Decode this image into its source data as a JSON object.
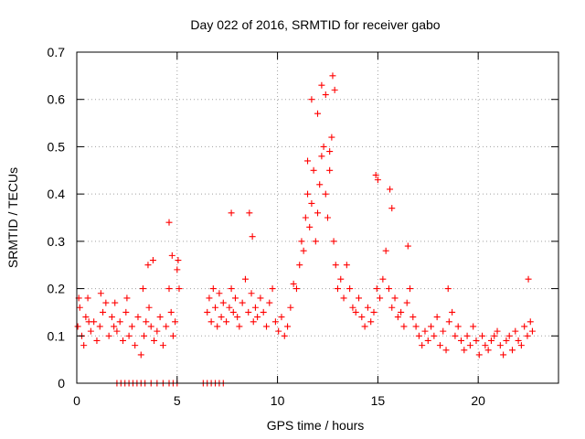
{
  "chart_data": {
    "type": "scatter",
    "title": "Day 022 of 2016, SRMTID for receiver gabo",
    "xlabel": "GPS time / hours",
    "ylabel": "SRMTID / TECUs",
    "xlim": [
      0,
      24
    ],
    "ylim": [
      0,
      0.7
    ],
    "xticks": [
      0,
      5,
      10,
      15,
      20
    ],
    "xtick_labels": [
      "0",
      "5",
      "10",
      "15",
      "20"
    ],
    "yticks": [
      0,
      0.1,
      0.2,
      0.3,
      0.4,
      0.5,
      0.6,
      0.7
    ],
    "ytick_labels": [
      "0",
      "0.1",
      "0.2",
      "0.3",
      "0.4",
      "0.5",
      "0.6",
      "0.7"
    ],
    "grid": true,
    "marker": "plus",
    "color": "#ff0000",
    "series": [
      {
        "name": "SRMTID",
        "x": [
          0.05,
          0.15,
          0.25,
          0.35,
          0.45,
          0.55,
          0.7,
          0.85,
          1.0,
          1.15,
          1.3,
          1.45,
          1.6,
          1.75,
          1.85,
          2.0,
          2.15,
          2.3,
          2.45,
          2.6,
          2.75,
          2.9,
          3.05,
          3.2,
          3.35,
          3.45,
          3.55,
          3.7,
          3.85,
          4.0,
          4.15,
          4.3,
          4.45,
          4.6,
          4.7,
          4.8,
          4.9,
          5.0,
          5.1,
          6.5,
          6.6,
          6.7,
          6.8,
          6.9,
          7.0,
          7.1,
          7.2,
          7.3,
          7.45,
          7.6,
          7.7,
          7.8,
          7.9,
          8.0,
          8.1,
          8.25,
          8.4,
          8.55,
          8.7,
          8.8,
          8.9,
          9.0,
          9.15,
          9.3,
          9.45,
          9.6,
          9.75,
          9.9,
          10.05,
          10.2,
          10.35,
          10.5,
          10.65,
          10.8,
          10.95,
          11.1,
          11.2,
          11.3,
          11.4,
          11.5,
          11.6,
          11.7,
          11.8,
          11.9,
          12.0,
          12.1,
          12.2,
          12.3,
          12.4,
          12.5,
          12.6,
          12.7,
          12.8,
          12.9,
          13.0,
          13.15,
          13.3,
          13.45,
          13.6,
          13.75,
          13.9,
          14.05,
          14.2,
          14.35,
          14.5,
          14.65,
          14.8,
          14.95,
          15.1,
          15.25,
          15.4,
          15.55,
          15.7,
          15.85,
          16.0,
          16.15,
          16.3,
          16.45,
          16.6,
          16.75,
          16.9,
          17.05,
          17.2,
          17.35,
          17.5,
          17.65,
          17.8,
          17.95,
          18.1,
          18.25,
          18.4,
          18.55,
          18.7,
          18.85,
          19.0,
          19.15,
          19.3,
          19.45,
          19.6,
          19.75,
          19.9,
          20.05,
          20.2,
          20.35,
          20.5,
          20.65,
          20.8,
          20.95,
          21.1,
          21.25,
          21.4,
          21.55,
          21.7,
          21.85,
          22.0,
          22.15,
          22.3,
          22.45,
          22.6,
          22.7,
          2.0,
          2.2,
          2.4,
          2.6,
          2.8,
          3.0,
          3.2,
          3.4,
          3.7,
          4.0,
          4.3,
          4.6,
          4.8,
          5.0,
          6.3,
          6.5,
          6.7,
          6.9,
          7.1,
          7.3,
          0.1,
          0.6,
          1.2,
          1.9,
          2.5,
          3.3,
          3.6,
          3.8,
          4.6,
          4.75,
          5.05,
          7.7,
          8.6,
          8.75,
          11.5,
          11.7,
          12.0,
          12.2,
          12.4,
          12.6,
          12.75,
          12.85,
          14.9,
          15.0,
          15.6,
          15.7,
          16.5,
          18.5,
          22.5
        ],
        "y": [
          0.12,
          0.16,
          0.1,
          0.08,
          0.14,
          0.18,
          0.11,
          0.13,
          0.09,
          0.12,
          0.15,
          0.17,
          0.1,
          0.14,
          0.12,
          0.11,
          0.13,
          0.09,
          0.15,
          0.1,
          0.12,
          0.08,
          0.14,
          0.06,
          0.1,
          0.13,
          0.25,
          0.12,
          0.09,
          0.11,
          0.14,
          0.08,
          0.12,
          0.2,
          0.15,
          0.1,
          0.13,
          0.24,
          0.2,
          0.15,
          0.18,
          0.13,
          0.2,
          0.16,
          0.12,
          0.19,
          0.14,
          0.17,
          0.13,
          0.16,
          0.2,
          0.15,
          0.18,
          0.14,
          0.12,
          0.17,
          0.22,
          0.15,
          0.19,
          0.13,
          0.16,
          0.14,
          0.18,
          0.15,
          0.12,
          0.17,
          0.2,
          0.13,
          0.11,
          0.14,
          0.1,
          0.12,
          0.16,
          0.21,
          0.2,
          0.25,
          0.3,
          0.28,
          0.35,
          0.4,
          0.33,
          0.38,
          0.45,
          0.3,
          0.36,
          0.42,
          0.48,
          0.5,
          0.4,
          0.35,
          0.45,
          0.52,
          0.3,
          0.25,
          0.2,
          0.22,
          0.18,
          0.25,
          0.2,
          0.16,
          0.15,
          0.18,
          0.14,
          0.12,
          0.16,
          0.13,
          0.15,
          0.2,
          0.18,
          0.22,
          0.28,
          0.2,
          0.16,
          0.18,
          0.14,
          0.15,
          0.12,
          0.17,
          0.2,
          0.14,
          0.12,
          0.1,
          0.08,
          0.11,
          0.09,
          0.12,
          0.1,
          0.14,
          0.08,
          0.11,
          0.07,
          0.13,
          0.15,
          0.1,
          0.12,
          0.09,
          0.07,
          0.1,
          0.08,
          0.12,
          0.09,
          0.06,
          0.1,
          0.08,
          0.07,
          0.09,
          0.1,
          0.11,
          0.08,
          0.06,
          0.09,
          0.1,
          0.07,
          0.11,
          0.09,
          0.08,
          0.12,
          0.1,
          0.13,
          0.11,
          0.0,
          0.0,
          0.0,
          0.0,
          0.0,
          0.0,
          0.0,
          0.0,
          0.0,
          0.0,
          0.0,
          0.0,
          0.0,
          0.0,
          0.0,
          0.0,
          0.0,
          0.0,
          0.0,
          0.0,
          0.18,
          0.13,
          0.19,
          0.17,
          0.18,
          0.2,
          0.16,
          0.26,
          0.34,
          0.27,
          0.26,
          0.36,
          0.36,
          0.31,
          0.47,
          0.6,
          0.57,
          0.63,
          0.61,
          0.49,
          0.65,
          0.62,
          0.44,
          0.43,
          0.41,
          0.37,
          0.29,
          0.2,
          0.22
        ]
      }
    ]
  }
}
